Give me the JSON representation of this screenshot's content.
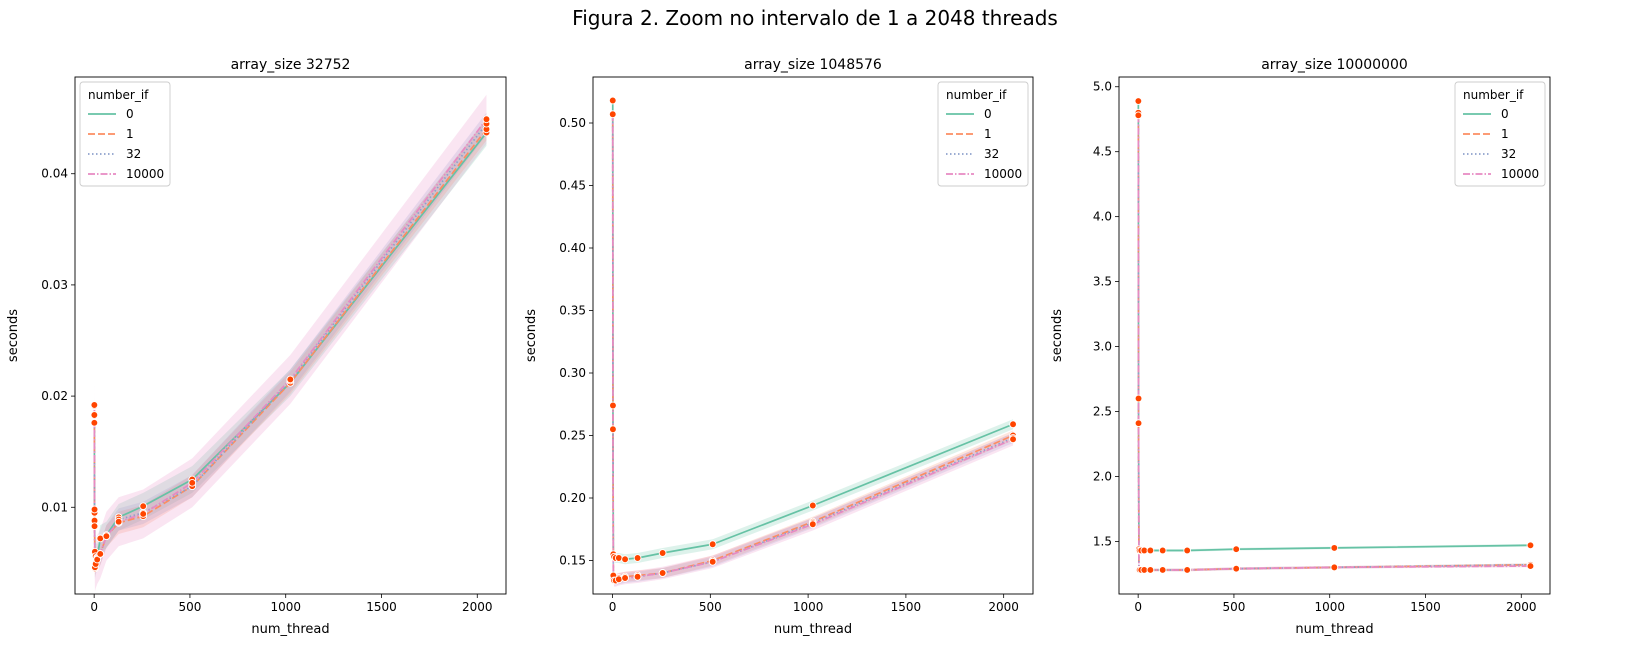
{
  "figure_title": "Figura 2. Zoom no intervalo de 1 a 2048 threads",
  "colors": {
    "series_0": "#66c2a5",
    "series_1": "#fc8d62",
    "series_32": "#8da0cb",
    "series_10000": "#e78ac3",
    "marker": "#ff4500"
  },
  "chart_data": [
    {
      "type": "line",
      "title": "array_size 32752",
      "xlabel": "num_thread",
      "ylabel": "seconds",
      "xlim": [
        -100,
        2150
      ],
      "ylim": [
        0.0022,
        0.0487
      ],
      "xticks": [
        0,
        500,
        1000,
        1500,
        2000
      ],
      "yticks": [
        0.01,
        0.02,
        0.03,
        0.04
      ],
      "ytick_labels": [
        "0.01",
        "0.02",
        "0.03",
        "0.04"
      ],
      "legend": {
        "title": "number_if",
        "position": "top-left"
      },
      "grid": false,
      "x": [
        1,
        2,
        4,
        8,
        16,
        32,
        64,
        128,
        256,
        512,
        1024,
        2048
      ],
      "series": [
        {
          "name": "0",
          "style": "solid",
          "band": 0.0012,
          "values": [
            0.0176,
            0.0095,
            0.006,
            0.0056,
            0.0055,
            0.0072,
            0.0075,
            0.0091,
            0.0101,
            0.0125,
            0.0212,
            0.0437
          ]
        },
        {
          "name": "1",
          "style": "dashed",
          "band": 0.001,
          "values": [
            0.0191,
            0.0088,
            0.0047,
            0.0051,
            0.0054,
            0.0058,
            0.0074,
            0.0086,
            0.0092,
            0.0119,
            0.0212,
            0.044
          ]
        },
        {
          "name": "32",
          "style": "dotted",
          "band": 0.001,
          "values": [
            0.0183,
            0.0098,
            0.0045,
            0.005,
            0.0053,
            0.0058,
            0.0074,
            0.0089,
            0.0095,
            0.0119,
            0.0214,
            0.0445
          ]
        },
        {
          "name": "10000",
          "style": "dashdot",
          "band": 0.0022,
          "values": [
            0.0192,
            0.0083,
            0.0046,
            0.0049,
            0.0053,
            0.0058,
            0.0074,
            0.0087,
            0.0094,
            0.0122,
            0.0215,
            0.0449
          ]
        }
      ]
    },
    {
      "type": "line",
      "title": "array_size 1048576",
      "xlabel": "num_thread",
      "ylabel": "seconds",
      "xlim": [
        -100,
        2150
      ],
      "ylim": [
        0.1232,
        0.5368
      ],
      "xticks": [
        0,
        500,
        1000,
        1500,
        2000
      ],
      "yticks": [
        0.15,
        0.2,
        0.25,
        0.3,
        0.35,
        0.4,
        0.45,
        0.5
      ],
      "ytick_labels": [
        "0.15",
        "0.20",
        "0.25",
        "0.30",
        "0.35",
        "0.40",
        "0.45",
        "0.50"
      ],
      "legend": {
        "title": "number_if",
        "position": "top-right"
      },
      "grid": false,
      "x": [
        1,
        2,
        4,
        8,
        16,
        32,
        64,
        128,
        256,
        512,
        1024,
        2048
      ],
      "series": [
        {
          "name": "0",
          "style": "solid",
          "band": 0.004,
          "values": [
            0.518,
            0.274,
            0.155,
            0.153,
            0.152,
            0.152,
            0.151,
            0.152,
            0.156,
            0.163,
            0.194,
            0.259
          ]
        },
        {
          "name": "1",
          "style": "dashed",
          "band": 0.004,
          "values": [
            0.507,
            0.255,
            0.137,
            0.135,
            0.135,
            0.136,
            0.137,
            0.138,
            0.14,
            0.15,
            0.181,
            0.25
          ]
        },
        {
          "name": "32",
          "style": "dotted",
          "band": 0.004,
          "values": [
            0.507,
            0.255,
            0.136,
            0.134,
            0.134,
            0.135,
            0.136,
            0.137,
            0.14,
            0.149,
            0.18,
            0.248
          ]
        },
        {
          "name": "10000",
          "style": "dashdot",
          "band": 0.005,
          "values": [
            0.507,
            0.255,
            0.138,
            0.134,
            0.134,
            0.135,
            0.136,
            0.137,
            0.14,
            0.149,
            0.179,
            0.247
          ]
        }
      ]
    },
    {
      "type": "line",
      "title": "array_size 10000000",
      "xlabel": "num_thread",
      "ylabel": "seconds",
      "xlim": [
        -100,
        2150
      ],
      "ylim": [
        1.095,
        5.075
      ],
      "xticks": [
        0,
        500,
        1000,
        1500,
        2000
      ],
      "yticks": [
        1.5,
        2.0,
        2.5,
        3.0,
        3.5,
        4.0,
        4.5,
        5.0
      ],
      "ytick_labels": [
        "1.5",
        "2.0",
        "2.5",
        "3.0",
        "3.5",
        "4.0",
        "4.5",
        "5.0"
      ],
      "legend": {
        "title": "number_if",
        "position": "top-right"
      },
      "grid": false,
      "x": [
        1,
        2,
        4,
        8,
        16,
        32,
        64,
        128,
        256,
        512,
        1024,
        2048
      ],
      "series": [
        {
          "name": "0",
          "style": "solid",
          "band": 0.01,
          "values": [
            4.89,
            2.6,
            1.44,
            1.43,
            1.43,
            1.43,
            1.43,
            1.43,
            1.43,
            1.44,
            1.45,
            1.47
          ]
        },
        {
          "name": "1",
          "style": "dashed",
          "band": 0.01,
          "values": [
            4.78,
            2.41,
            1.28,
            1.28,
            1.28,
            1.28,
            1.28,
            1.28,
            1.28,
            1.29,
            1.3,
            1.32
          ]
        },
        {
          "name": "32",
          "style": "dotted",
          "band": 0.01,
          "values": [
            4.8,
            2.41,
            1.28,
            1.28,
            1.28,
            1.28,
            1.28,
            1.28,
            1.28,
            1.29,
            1.3,
            1.32
          ]
        },
        {
          "name": "10000",
          "style": "dashdot",
          "band": 0.01,
          "values": [
            4.78,
            2.41,
            1.28,
            1.28,
            1.28,
            1.28,
            1.28,
            1.28,
            1.28,
            1.29,
            1.3,
            1.31
          ]
        }
      ]
    }
  ]
}
